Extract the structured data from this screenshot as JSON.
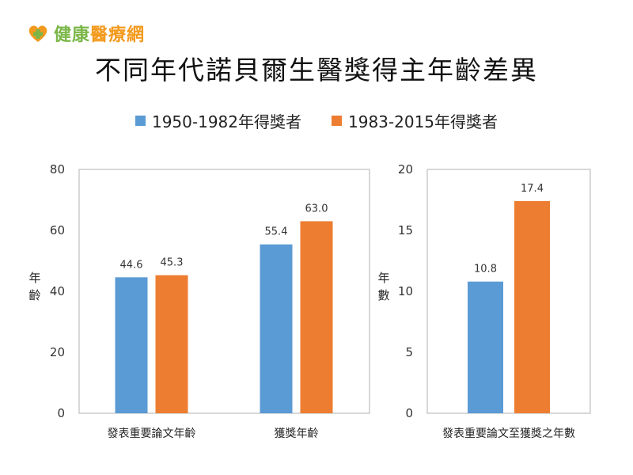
{
  "brand": {
    "name_a": "健康",
    "name_b": "醫療網"
  },
  "colors": {
    "series1": "#5b9bd5",
    "series2": "#ed7d31",
    "axis": "#bfbfbf"
  },
  "chart_data": [
    {
      "type": "bar",
      "title": "不同年代諾貝爾生醫獎得主年齡差異",
      "ylabel": "年齡",
      "xlabel": "",
      "ylim": [
        0,
        80
      ],
      "yticks": [
        0,
        20,
        40,
        60,
        80
      ],
      "categories": [
        "發表重要論文年齡",
        "獲獎年齡"
      ],
      "series": [
        {
          "name": "1950-1982年得獎者",
          "values": [
            44.6,
            55.4
          ],
          "labels": [
            "44.6",
            "55.4"
          ]
        },
        {
          "name": "1983-2015年得獎者",
          "values": [
            45.3,
            63.0
          ],
          "labels": [
            "45.3",
            "63.0"
          ]
        }
      ],
      "legend_position": "top-center"
    },
    {
      "type": "bar",
      "ylabel": "年數",
      "xlabel": "",
      "ylim": [
        0,
        20
      ],
      "yticks": [
        0,
        5,
        10,
        15,
        20
      ],
      "categories": [
        "發表重要論文至獲獎之年數"
      ],
      "series": [
        {
          "name": "1950-1982年得獎者",
          "values": [
            10.8
          ],
          "labels": [
            "10.8"
          ]
        },
        {
          "name": "1983-2015年得獎者",
          "values": [
            17.4
          ],
          "labels": [
            "17.4"
          ]
        }
      ]
    }
  ]
}
